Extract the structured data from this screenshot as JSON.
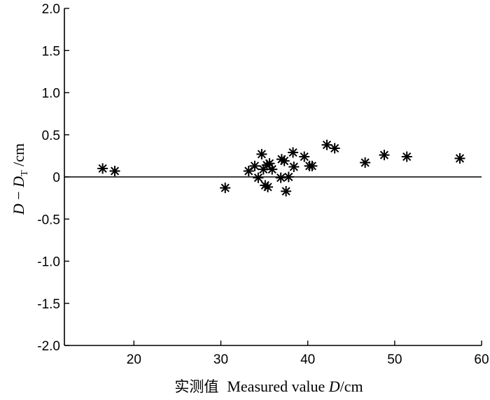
{
  "chart_data": {
    "type": "scatter",
    "title": "",
    "xlabel": "实测值 Measured value D/cm",
    "xlabel_parts": {
      "cn": "实测值",
      "en": "Measured value ",
      "var": "D",
      "unit": "/cm"
    },
    "ylabel": "D − D_T /cm",
    "ylabel_parts": {
      "var": "D",
      "minus": " − ",
      "var2": "D",
      "sub": "T",
      "unit": " /cm"
    },
    "xlim": [
      12,
      60
    ],
    "ylim": [
      -2.0,
      2.0
    ],
    "xticks": [
      20,
      30,
      40,
      50,
      60
    ],
    "yticks": [
      2.0,
      1.5,
      1.0,
      0.5,
      0,
      -0.5,
      -1.0,
      -1.5,
      -2.0
    ],
    "ytick_labels": [
      "2.0",
      "1.5",
      "1.0",
      "0.5",
      "0",
      "-0.5",
      "-1.0",
      "-1.5",
      "-2.0"
    ],
    "xtick_labels": [
      "20",
      "30",
      "40",
      "50",
      "60"
    ],
    "reference_line_y": 0,
    "grid": false,
    "marker": "asterisk",
    "color": "#000000",
    "points": [
      {
        "x": 16.4,
        "y": 0.1
      },
      {
        "x": 17.8,
        "y": 0.07
      },
      {
        "x": 30.5,
        "y": -0.13
      },
      {
        "x": 33.2,
        "y": 0.07
      },
      {
        "x": 33.9,
        "y": 0.13
      },
      {
        "x": 34.3,
        "y": -0.01
      },
      {
        "x": 34.7,
        "y": 0.27
      },
      {
        "x": 34.9,
        "y": 0.09
      },
      {
        "x": 35.1,
        "y": -0.1
      },
      {
        "x": 35.3,
        "y": 0.14
      },
      {
        "x": 35.4,
        "y": -0.12
      },
      {
        "x": 35.6,
        "y": 0.16
      },
      {
        "x": 35.9,
        "y": 0.09
      },
      {
        "x": 36.9,
        "y": -0.01
      },
      {
        "x": 37.0,
        "y": 0.21
      },
      {
        "x": 37.3,
        "y": 0.19
      },
      {
        "x": 37.5,
        "y": -0.17
      },
      {
        "x": 37.8,
        "y": 0.0
      },
      {
        "x": 38.3,
        "y": 0.29
      },
      {
        "x": 38.4,
        "y": 0.12
      },
      {
        "x": 39.6,
        "y": 0.24
      },
      {
        "x": 40.2,
        "y": 0.13
      },
      {
        "x": 40.5,
        "y": 0.13
      },
      {
        "x": 42.2,
        "y": 0.38
      },
      {
        "x": 43.1,
        "y": 0.34
      },
      {
        "x": 46.6,
        "y": 0.17
      },
      {
        "x": 48.8,
        "y": 0.26
      },
      {
        "x": 51.4,
        "y": 0.24
      },
      {
        "x": 57.5,
        "y": 0.22
      }
    ]
  }
}
